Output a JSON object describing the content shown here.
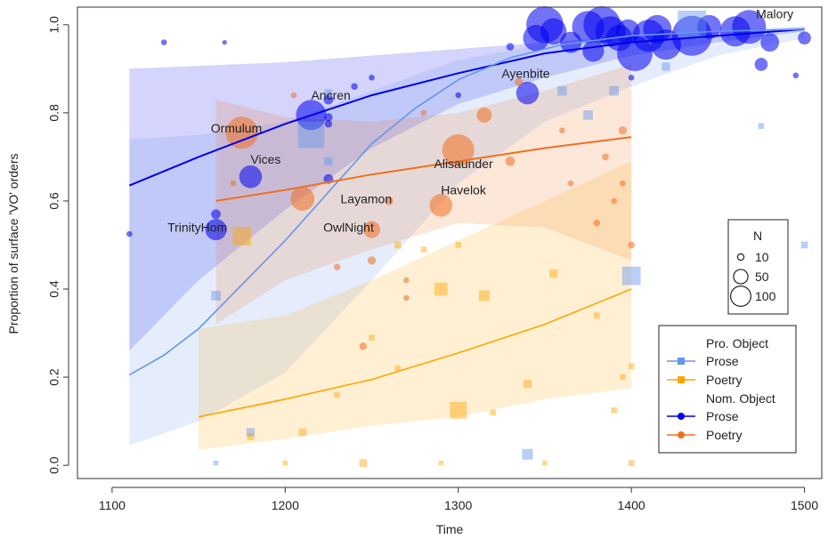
{
  "chart_data": {
    "type": "scatter",
    "xlabel": "Time",
    "ylabel": "Proportion of surface 'VO' orders",
    "xlim": [
      1080,
      1510
    ],
    "ylim": [
      -0.03,
      1.04
    ],
    "x_ticks": [
      1100,
      1200,
      1300,
      1400,
      1500
    ],
    "y_ticks": [
      0.0,
      0.2,
      0.4,
      0.6,
      0.8,
      1.0
    ],
    "x_tick_labels": [
      "1100",
      "1200",
      "1300",
      "1400",
      "1500"
    ],
    "y_tick_labels": [
      "0.0",
      "0.2",
      "0.4",
      "0.6",
      "0.8",
      "1.0"
    ],
    "colors": {
      "pro_prose": "#6495ed",
      "pro_poetry": "#ffa500",
      "nom_prose": "#0000ee",
      "nom_poetry": "#f07020"
    },
    "size_legend": {
      "title": "N",
      "items": [
        {
          "label": "10",
          "n": 10
        },
        {
          "label": "50",
          "n": 50
        },
        {
          "label": "100",
          "n": 100
        }
      ]
    },
    "legend": {
      "placement": "bottom-right",
      "groups": [
        {
          "heading": "Pro. Object",
          "entries": [
            {
              "label": "Prose",
              "series": "pro_prose",
              "marker": "square"
            },
            {
              "label": "Poetry",
              "series": "pro_poetry",
              "marker": "square"
            }
          ]
        },
        {
          "heading": "Nom. Object",
          "entries": [
            {
              "label": "Prose",
              "series": "nom_prose",
              "marker": "circle"
            },
            {
              "label": "Poetry",
              "series": "nom_poetry",
              "marker": "circle"
            }
          ]
        }
      ]
    },
    "series": [
      {
        "id": "nom_prose",
        "fit": [
          [
            1110,
            0.635
          ],
          [
            1150,
            0.7
          ],
          [
            1200,
            0.775
          ],
          [
            1250,
            0.84
          ],
          [
            1300,
            0.89
          ],
          [
            1350,
            0.935
          ],
          [
            1400,
            0.96
          ],
          [
            1450,
            0.975
          ],
          [
            1500,
            0.99
          ]
        ],
        "band_upper": [
          [
            1110,
            0.9
          ],
          [
            1200,
            0.915
          ],
          [
            1300,
            0.945
          ],
          [
            1400,
            0.975
          ],
          [
            1500,
            0.995
          ]
        ],
        "band_lower": [
          [
            1110,
            0.26
          ],
          [
            1150,
            0.42
          ],
          [
            1200,
            0.58
          ],
          [
            1250,
            0.72
          ],
          [
            1300,
            0.82
          ],
          [
            1350,
            0.88
          ],
          [
            1400,
            0.93
          ],
          [
            1450,
            0.96
          ],
          [
            1500,
            0.985
          ]
        ]
      },
      {
        "id": "pro_prose",
        "fit": [
          [
            1110,
            0.205
          ],
          [
            1130,
            0.25
          ],
          [
            1150,
            0.31
          ],
          [
            1175,
            0.41
          ],
          [
            1200,
            0.51
          ],
          [
            1225,
            0.62
          ],
          [
            1250,
            0.73
          ],
          [
            1275,
            0.81
          ],
          [
            1300,
            0.875
          ],
          [
            1330,
            0.925
          ],
          [
            1360,
            0.955
          ],
          [
            1400,
            0.975
          ],
          [
            1450,
            0.985
          ],
          [
            1500,
            0.99
          ]
        ],
        "band_upper": [
          [
            1110,
            0.74
          ],
          [
            1150,
            0.75
          ],
          [
            1200,
            0.78
          ],
          [
            1250,
            0.85
          ],
          [
            1300,
            0.92
          ],
          [
            1350,
            0.955
          ],
          [
            1400,
            0.975
          ],
          [
            1500,
            0.995
          ]
        ],
        "band_lower": [
          [
            1110,
            0.045
          ],
          [
            1150,
            0.1
          ],
          [
            1200,
            0.21
          ],
          [
            1250,
            0.42
          ],
          [
            1300,
            0.64
          ],
          [
            1350,
            0.78
          ],
          [
            1400,
            0.86
          ],
          [
            1450,
            0.93
          ],
          [
            1500,
            0.97
          ]
        ]
      },
      {
        "id": "nom_poetry",
        "fit": [
          [
            1160,
            0.6
          ],
          [
            1200,
            0.625
          ],
          [
            1250,
            0.66
          ],
          [
            1300,
            0.69
          ],
          [
            1350,
            0.72
          ],
          [
            1400,
            0.745
          ]
        ],
        "band_upper": [
          [
            1160,
            0.83
          ],
          [
            1200,
            0.79
          ],
          [
            1250,
            0.78
          ],
          [
            1300,
            0.8
          ],
          [
            1350,
            0.85
          ],
          [
            1400,
            0.91
          ]
        ],
        "band_lower": [
          [
            1160,
            0.32
          ],
          [
            1200,
            0.42
          ],
          [
            1250,
            0.49
          ],
          [
            1300,
            0.55
          ],
          [
            1350,
            0.54
          ],
          [
            1400,
            0.465
          ]
        ]
      },
      {
        "id": "pro_poetry",
        "fit": [
          [
            1150,
            0.11
          ],
          [
            1200,
            0.15
          ],
          [
            1250,
            0.195
          ],
          [
            1300,
            0.255
          ],
          [
            1350,
            0.32
          ],
          [
            1400,
            0.4
          ]
        ],
        "band_upper": [
          [
            1150,
            0.31
          ],
          [
            1200,
            0.34
          ],
          [
            1250,
            0.42
          ],
          [
            1300,
            0.51
          ],
          [
            1350,
            0.6
          ],
          [
            1400,
            0.69
          ]
        ],
        "band_lower": [
          [
            1150,
            0.035
          ],
          [
            1200,
            0.06
          ],
          [
            1250,
            0.09
          ],
          [
            1300,
            0.11
          ],
          [
            1350,
            0.15
          ],
          [
            1400,
            0.175
          ]
        ]
      }
    ],
    "points": [
      {
        "x": 1110,
        "y": 0.525,
        "n": 3,
        "series": "nom_prose"
      },
      {
        "x": 1130,
        "y": 0.96,
        "n": 3,
        "series": "nom_prose"
      },
      {
        "x": 1160,
        "y": 0.535,
        "n": 40,
        "series": "nom_prose"
      },
      {
        "x": 1160,
        "y": 0.57,
        "n": 8,
        "series": "nom_prose"
      },
      {
        "x": 1165,
        "y": 0.96,
        "n": 2,
        "series": "nom_prose"
      },
      {
        "x": 1180,
        "y": 0.655,
        "n": 45,
        "series": "nom_prose"
      },
      {
        "x": 1215,
        "y": 0.795,
        "n": 80,
        "series": "nom_prose"
      },
      {
        "x": 1225,
        "y": 0.83,
        "n": 8,
        "series": "nom_prose"
      },
      {
        "x": 1225,
        "y": 0.79,
        "n": 6,
        "series": "nom_prose"
      },
      {
        "x": 1225,
        "y": 0.65,
        "n": 8,
        "series": "nom_prose"
      },
      {
        "x": 1225,
        "y": 0.775,
        "n": 5,
        "series": "nom_prose"
      },
      {
        "x": 1240,
        "y": 0.86,
        "n": 4,
        "series": "nom_prose"
      },
      {
        "x": 1250,
        "y": 0.88,
        "n": 3,
        "series": "nom_prose"
      },
      {
        "x": 1300,
        "y": 0.84,
        "n": 3,
        "series": "nom_prose"
      },
      {
        "x": 1330,
        "y": 0.95,
        "n": 5,
        "series": "nom_prose"
      },
      {
        "x": 1340,
        "y": 0.845,
        "n": 45,
        "series": "nom_prose"
      },
      {
        "x": 1345,
        "y": 0.97,
        "n": 60,
        "series": "nom_prose"
      },
      {
        "x": 1350,
        "y": 1.0,
        "n": 120,
        "series": "nom_prose"
      },
      {
        "x": 1355,
        "y": 0.985,
        "n": 60,
        "series": "nom_prose"
      },
      {
        "x": 1365,
        "y": 0.96,
        "n": 40,
        "series": "nom_prose"
      },
      {
        "x": 1375,
        "y": 0.995,
        "n": 90,
        "series": "nom_prose"
      },
      {
        "x": 1378,
        "y": 0.94,
        "n": 40,
        "series": "nom_prose"
      },
      {
        "x": 1383,
        "y": 1.0,
        "n": 120,
        "series": "nom_prose"
      },
      {
        "x": 1388,
        "y": 0.985,
        "n": 80,
        "series": "nom_prose"
      },
      {
        "x": 1393,
        "y": 0.97,
        "n": 60,
        "series": "nom_prose"
      },
      {
        "x": 1398,
        "y": 0.985,
        "n": 50,
        "series": "nom_prose"
      },
      {
        "x": 1402,
        "y": 0.935,
        "n": 110,
        "series": "nom_prose"
      },
      {
        "x": 1410,
        "y": 0.975,
        "n": 90,
        "series": "nom_prose"
      },
      {
        "x": 1415,
        "y": 0.99,
        "n": 70,
        "series": "nom_prose"
      },
      {
        "x": 1420,
        "y": 0.955,
        "n": 80,
        "series": "nom_prose"
      },
      {
        "x": 1435,
        "y": 0.975,
        "n": 140,
        "series": "nom_prose"
      },
      {
        "x": 1445,
        "y": 0.995,
        "n": 50,
        "series": "nom_prose"
      },
      {
        "x": 1460,
        "y": 0.985,
        "n": 80,
        "series": "nom_prose"
      },
      {
        "x": 1468,
        "y": 0.995,
        "n": 100,
        "series": "nom_prose"
      },
      {
        "x": 1475,
        "y": 0.91,
        "n": 15,
        "series": "nom_prose"
      },
      {
        "x": 1480,
        "y": 0.96,
        "n": 30,
        "series": "nom_prose"
      },
      {
        "x": 1495,
        "y": 0.885,
        "n": 3,
        "series": "nom_prose"
      },
      {
        "x": 1500,
        "y": 0.97,
        "n": 15,
        "series": "nom_prose"
      },
      {
        "x": 1400,
        "y": 0.88,
        "n": 3,
        "series": "nom_prose"
      },
      {
        "x": 1175,
        "y": 0.755,
        "n": 90,
        "series": "nom_poetry"
      },
      {
        "x": 1210,
        "y": 0.605,
        "n": 50,
        "series": "nom_poetry"
      },
      {
        "x": 1250,
        "y": 0.535,
        "n": 25,
        "series": "nom_poetry"
      },
      {
        "x": 1290,
        "y": 0.59,
        "n": 45,
        "series": "nom_poetry"
      },
      {
        "x": 1300,
        "y": 0.715,
        "n": 90,
        "series": "nom_poetry"
      },
      {
        "x": 1315,
        "y": 0.795,
        "n": 20,
        "series": "nom_poetry"
      },
      {
        "x": 1330,
        "y": 0.69,
        "n": 8,
        "series": "nom_poetry"
      },
      {
        "x": 1335,
        "y": 0.87,
        "n": 6,
        "series": "nom_poetry"
      },
      {
        "x": 1250,
        "y": 0.465,
        "n": 6,
        "series": "nom_poetry"
      },
      {
        "x": 1260,
        "y": 0.6,
        "n": 6,
        "series": "nom_poetry"
      },
      {
        "x": 1245,
        "y": 0.27,
        "n": 5,
        "series": "nom_poetry"
      },
      {
        "x": 1230,
        "y": 0.45,
        "n": 4,
        "series": "nom_poetry"
      },
      {
        "x": 1385,
        "y": 0.7,
        "n": 4,
        "series": "nom_poetry"
      },
      {
        "x": 1395,
        "y": 0.76,
        "n": 6,
        "series": "nom_poetry"
      },
      {
        "x": 1380,
        "y": 0.55,
        "n": 4,
        "series": "nom_poetry"
      },
      {
        "x": 1390,
        "y": 0.6,
        "n": 3,
        "series": "nom_poetry"
      },
      {
        "x": 1400,
        "y": 0.5,
        "n": 4,
        "series": "nom_poetry"
      },
      {
        "x": 1360,
        "y": 0.76,
        "n": 3,
        "series": "nom_poetry"
      },
      {
        "x": 1365,
        "y": 0.64,
        "n": 3,
        "series": "nom_poetry"
      },
      {
        "x": 1395,
        "y": 0.64,
        "n": 3,
        "series": "nom_poetry"
      },
      {
        "x": 1270,
        "y": 0.38,
        "n": 3,
        "series": "nom_poetry"
      },
      {
        "x": 1280,
        "y": 0.8,
        "n": 3,
        "series": "nom_poetry"
      },
      {
        "x": 1205,
        "y": 0.84,
        "n": 3,
        "series": "nom_poetry"
      },
      {
        "x": 1170,
        "y": 0.64,
        "n": 3,
        "series": "nom_poetry"
      },
      {
        "x": 1270,
        "y": 0.42,
        "n": 3,
        "series": "nom_poetry"
      },
      {
        "x": 1215,
        "y": 0.75,
        "n": 60,
        "series": "pro_prose"
      },
      {
        "x": 1160,
        "y": 0.385,
        "n": 8,
        "series": "pro_prose"
      },
      {
        "x": 1225,
        "y": 0.845,
        "n": 5,
        "series": "pro_prose"
      },
      {
        "x": 1225,
        "y": 0.69,
        "n": 6,
        "series": "pro_prose"
      },
      {
        "x": 1360,
        "y": 0.85,
        "n": 8,
        "series": "pro_prose"
      },
      {
        "x": 1375,
        "y": 0.795,
        "n": 8,
        "series": "pro_prose"
      },
      {
        "x": 1390,
        "y": 0.85,
        "n": 8,
        "series": "pro_prose"
      },
      {
        "x": 1420,
        "y": 0.905,
        "n": 6,
        "series": "pro_prose"
      },
      {
        "x": 1435,
        "y": 1.0,
        "n": 70,
        "series": "pro_prose"
      },
      {
        "x": 1400,
        "y": 0.43,
        "n": 30,
        "series": "pro_prose"
      },
      {
        "x": 1340,
        "y": 0.025,
        "n": 10,
        "series": "pro_prose"
      },
      {
        "x": 1180,
        "y": 0.075,
        "n": 6,
        "series": "pro_prose"
      },
      {
        "x": 1475,
        "y": 0.77,
        "n": 3,
        "series": "pro_prose"
      },
      {
        "x": 1500,
        "y": 0.5,
        "n": 4,
        "series": "pro_prose"
      },
      {
        "x": 1160,
        "y": 0.005,
        "n": 2,
        "series": "pro_prose"
      },
      {
        "x": 1175,
        "y": 0.52,
        "n": 30,
        "series": "pro_poetry"
      },
      {
        "x": 1210,
        "y": 0.075,
        "n": 5,
        "series": "pro_poetry"
      },
      {
        "x": 1180,
        "y": 0.065,
        "n": 4,
        "series": "pro_poetry"
      },
      {
        "x": 1245,
        "y": 0.005,
        "n": 5,
        "series": "pro_poetry"
      },
      {
        "x": 1265,
        "y": 0.5,
        "n": 4,
        "series": "pro_poetry"
      },
      {
        "x": 1280,
        "y": 0.49,
        "n": 3,
        "series": "pro_poetry"
      },
      {
        "x": 1290,
        "y": 0.4,
        "n": 15,
        "series": "pro_poetry"
      },
      {
        "x": 1300,
        "y": 0.125,
        "n": 25,
        "series": "pro_poetry"
      },
      {
        "x": 1315,
        "y": 0.385,
        "n": 10,
        "series": "pro_poetry"
      },
      {
        "x": 1340,
        "y": 0.185,
        "n": 6,
        "series": "pro_poetry"
      },
      {
        "x": 1355,
        "y": 0.435,
        "n": 6,
        "series": "pro_poetry"
      },
      {
        "x": 1250,
        "y": 0.29,
        "n": 3,
        "series": "pro_poetry"
      },
      {
        "x": 1230,
        "y": 0.16,
        "n": 3,
        "series": "pro_poetry"
      },
      {
        "x": 1265,
        "y": 0.22,
        "n": 3,
        "series": "pro_poetry"
      },
      {
        "x": 1320,
        "y": 0.12,
        "n": 3,
        "series": "pro_poetry"
      },
      {
        "x": 1395,
        "y": 0.2,
        "n": 3,
        "series": "pro_poetry"
      },
      {
        "x": 1400,
        "y": 0.225,
        "n": 3,
        "series": "pro_poetry"
      },
      {
        "x": 1390,
        "y": 0.125,
        "n": 3,
        "series": "pro_poetry"
      },
      {
        "x": 1400,
        "y": 0.005,
        "n": 3,
        "series": "pro_poetry"
      },
      {
        "x": 1380,
        "y": 0.34,
        "n": 3,
        "series": "pro_poetry"
      },
      {
        "x": 1300,
        "y": 0.5,
        "n": 3,
        "series": "pro_poetry"
      },
      {
        "x": 1200,
        "y": 0.005,
        "n": 2,
        "series": "pro_poetry"
      },
      {
        "x": 1290,
        "y": 0.005,
        "n": 2,
        "series": "pro_poetry"
      },
      {
        "x": 1350,
        "y": 0.005,
        "n": 2,
        "series": "pro_poetry"
      }
    ],
    "annotations": [
      {
        "text": "TrinityHom",
        "x": 1132,
        "y": 0.53
      },
      {
        "text": "Ormulum",
        "x": 1157,
        "y": 0.755
      },
      {
        "text": "Ancren",
        "x": 1215,
        "y": 0.83
      },
      {
        "text": "Vices",
        "x": 1180,
        "y": 0.685
      },
      {
        "text": "Layamon",
        "x": 1232,
        "y": 0.595
      },
      {
        "text": "OwlNight",
        "x": 1222,
        "y": 0.53
      },
      {
        "text": "Havelok",
        "x": 1290,
        "y": 0.615
      },
      {
        "text": "Alisaunder",
        "x": 1286,
        "y": 0.675
      },
      {
        "text": "Ayenbite",
        "x": 1325,
        "y": 0.88
      },
      {
        "text": "Malory",
        "x": 1472,
        "y": 1.015
      }
    ]
  }
}
